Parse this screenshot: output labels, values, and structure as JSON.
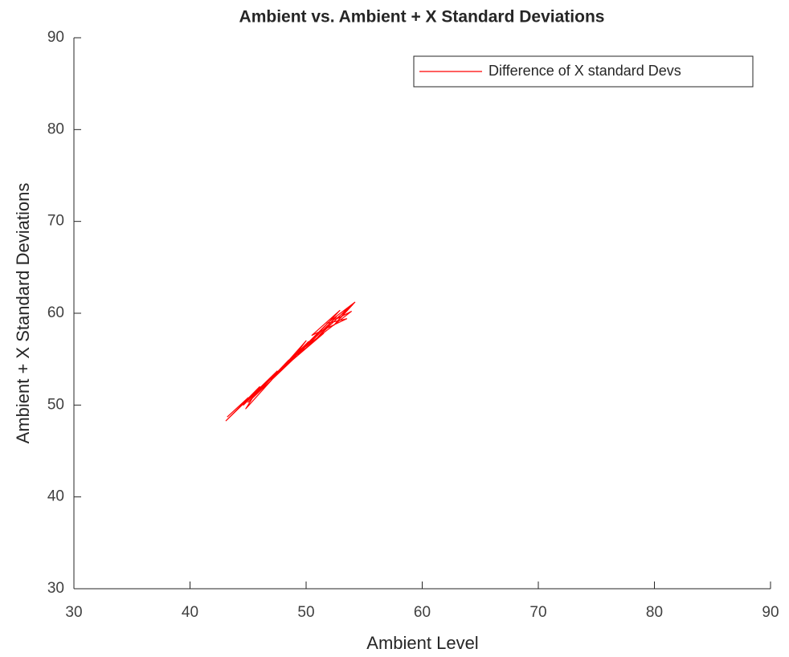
{
  "chart_data": {
    "type": "line",
    "title": "Ambient vs. Ambient + X Standard Deviations",
    "x_label": "Ambient Level",
    "y_label": "Ambient + X Standard Deviations",
    "xlim": [
      30,
      90
    ],
    "ylim": [
      30,
      90
    ],
    "xticks": [
      30,
      40,
      50,
      60,
      70,
      80,
      90
    ],
    "yticks": [
      30,
      40,
      50,
      60,
      70,
      80,
      90
    ],
    "legend": "upper right",
    "series": [
      {
        "name": "Difference of X standard Devs",
        "color": "#ff0000",
        "x": [
          43.2,
          45.0,
          44.6,
          47.1,
          46.0,
          48.5,
          47.2,
          50.0,
          48.6,
          51.3,
          50.1,
          52.6,
          51.0,
          53.8,
          52.4,
          54.2,
          51.8,
          53.5,
          50.5,
          52.9,
          49.3,
          51.5,
          47.8,
          50.2,
          46.4,
          48.9,
          45.0,
          47.5,
          43.1,
          46.0,
          44.8,
          49.5,
          47.0,
          52.0,
          49.8,
          53.9,
          52.5,
          54.0
        ],
        "values": [
          48.7,
          50.8,
          50.0,
          53.1,
          51.6,
          54.9,
          53.0,
          57.0,
          54.7,
          58.2,
          56.5,
          59.6,
          57.4,
          60.8,
          58.7,
          61.2,
          58.9,
          59.4,
          57.6,
          60.3,
          55.5,
          57.8,
          53.8,
          56.9,
          52.2,
          55.0,
          50.3,
          53.7,
          48.3,
          52.0,
          49.6,
          56.2,
          52.8,
          59.1,
          56.2,
          60.2,
          59.3,
          60.9
        ]
      }
    ]
  }
}
